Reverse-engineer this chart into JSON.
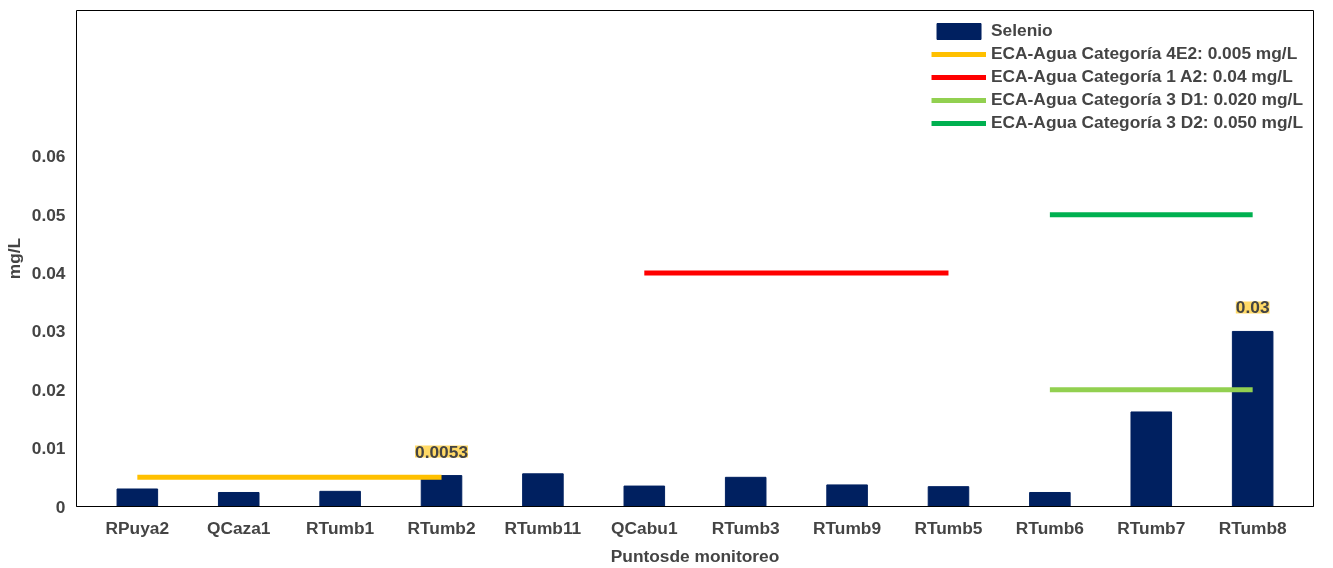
{
  "chart_data": {
    "type": "bar",
    "xlabel": "Puntosde monitoreo",
    "ylabel": "mg/L",
    "categories": [
      "RPuya2",
      "QCaza1",
      "RTumb1",
      "RTumb2",
      "RTumb11",
      "QCabu1",
      "RTumb3",
      "RTumb9",
      "RTumb5",
      "RTumb6",
      "RTumb7",
      "RTumb8"
    ],
    "series": [
      {
        "name": "Selenio",
        "color": "#002060",
        "values": [
          0.003,
          0.0024,
          0.0026,
          0.0053,
          0.0056,
          0.0035,
          0.005,
          0.0037,
          0.0034,
          0.0024,
          0.0162,
          0.03
        ],
        "value_labels": [
          null,
          null,
          null,
          "0.0053",
          null,
          null,
          null,
          null,
          null,
          null,
          null,
          "0.03"
        ]
      },
      {
        "name": "ECA-Agua Categoría 4E2: 0.005 mg/L",
        "type": "line",
        "color": "#ffc000",
        "values": [
          0.005,
          0.005,
          0.005,
          0.005,
          null,
          null,
          null,
          null,
          null,
          null,
          null,
          null
        ]
      },
      {
        "name": "ECA-Agua Categoría 1 A2: 0.04 mg/L",
        "type": "line",
        "color": "#ff0000",
        "values": [
          null,
          null,
          null,
          null,
          null,
          0.04,
          0.04,
          0.04,
          0.04,
          null,
          null,
          null
        ]
      },
      {
        "name": "ECA-Agua Categoría 3 D1: 0.020 mg/L",
        "type": "line",
        "color": "#92d050",
        "values": [
          null,
          null,
          null,
          null,
          null,
          null,
          null,
          null,
          null,
          0.02,
          0.02,
          0.02
        ]
      },
      {
        "name": "ECA-Agua Categoría 3 D2: 0.050 mg/L",
        "type": "line",
        "color": "#00b050",
        "values": [
          null,
          null,
          null,
          null,
          null,
          null,
          null,
          null,
          null,
          0.05,
          0.05,
          0.05
        ]
      }
    ],
    "ylim": [
      0,
      0.085
    ],
    "yticks": [
      0,
      0.01,
      0.02,
      0.03,
      0.04,
      0.05,
      0.06
    ],
    "grid": false,
    "legend": "top right"
  }
}
